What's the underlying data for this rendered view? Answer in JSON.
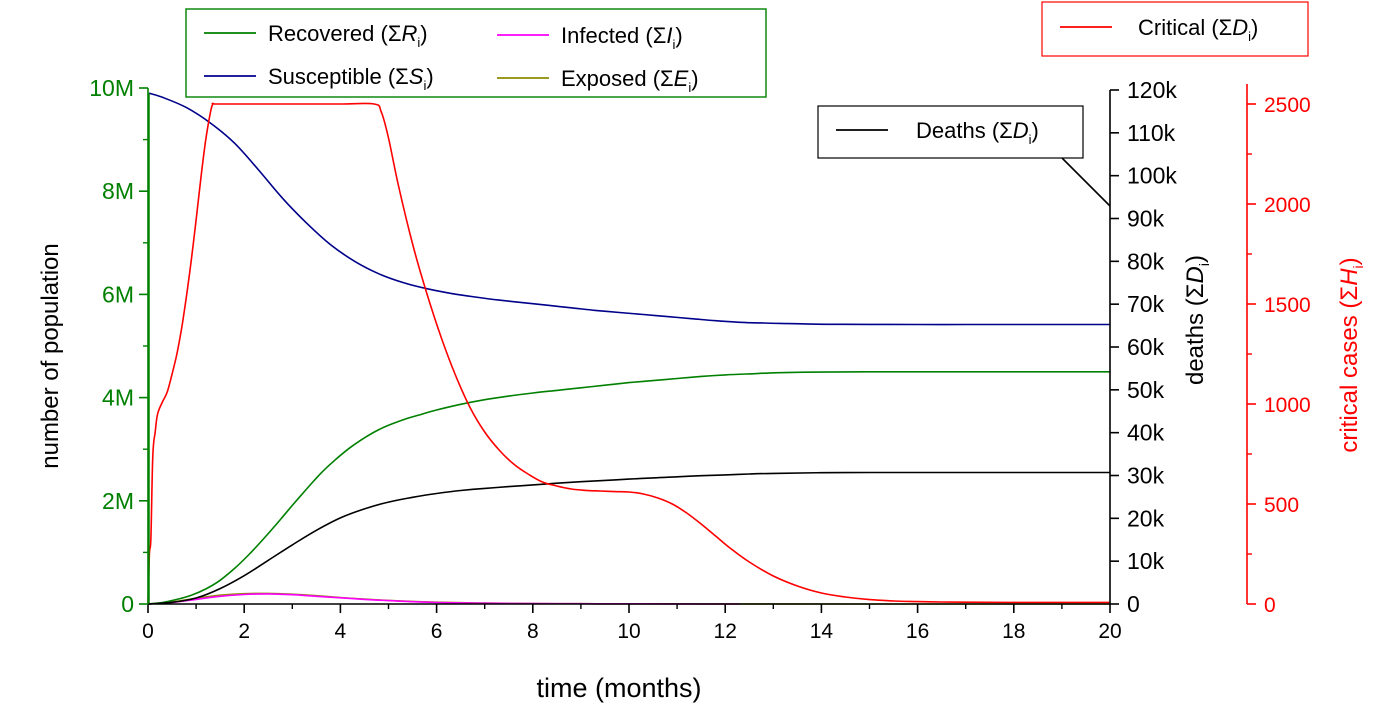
{
  "chart_data": {
    "type": "line",
    "xlabel": "time (months)",
    "xlim": [
      0,
      20
    ],
    "x_ticks": [
      "0",
      "2",
      "4",
      "6",
      "8",
      "10",
      "12",
      "14",
      "16",
      "18",
      "20"
    ],
    "x_minor": true,
    "grid": false,
    "axes": {
      "left": {
        "label": "number of population",
        "color": "#008000",
        "ylim": [
          0,
          10000000
        ],
        "tick_labels": [
          "0",
          "2M",
          "4M",
          "6M",
          "8M",
          "10M"
        ]
      },
      "deaths": {
        "label_main": "deaths",
        "label_sym": "(ΣD",
        "label_sub": "i",
        "label_close": ")",
        "color": "#000000",
        "ylim": [
          0,
          120000
        ],
        "tick_labels": [
          "0",
          "10k",
          "20k",
          "30k",
          "40k",
          "50k",
          "60k",
          "70k",
          "80k",
          "90k",
          "100k",
          "110k",
          "120k"
        ]
      },
      "critical": {
        "label_main": "critical cases",
        "label_sym": "(ΣH",
        "label_sub": "i",
        "label_close": ")",
        "color": "#ff0000",
        "ylim": [
          0,
          2600
        ],
        "tick_labels": [
          "0",
          "500",
          "1000",
          "1500",
          "2000",
          "2500"
        ]
      }
    },
    "series": [
      {
        "name": "Susceptible",
        "sym": "(ΣS",
        "sub": "i",
        "close": ")",
        "color": "#00008b",
        "axis": "left",
        "x": [
          0.02,
          0.3,
          0.8,
          1.3,
          1.8,
          2.3,
          2.8,
          3.3,
          3.8,
          4.3,
          4.8,
          5.3,
          5.8,
          6.3,
          6.8,
          7.3,
          7.8,
          8.3,
          8.8,
          9.3,
          9.8,
          10.3,
          10.8,
          11.3,
          11.8,
          12.3,
          12.8,
          13.3,
          13.8,
          14.3,
          15,
          16,
          17,
          18,
          19,
          20
        ],
        "y": [
          9900000,
          9820000,
          9620000,
          9320000,
          8930000,
          8410000,
          7860000,
          7380000,
          6960000,
          6640000,
          6400000,
          6230000,
          6110000,
          6020000,
          5950000,
          5890000,
          5840000,
          5790000,
          5740000,
          5690000,
          5650000,
          5610000,
          5570000,
          5530000,
          5490000,
          5460000,
          5445000,
          5435000,
          5425000,
          5420000,
          5418000,
          5416000,
          5416000,
          5416000,
          5416000,
          5416000
        ]
      },
      {
        "name": "Recovered",
        "sym": "(ΣR",
        "sub": "i",
        "close": ")",
        "color": "#008000",
        "axis": "left",
        "x": [
          0,
          0.3,
          0.6,
          0.9,
          1.2,
          1.5,
          1.8,
          2.1,
          2.4,
          2.7,
          3.0,
          3.3,
          3.6,
          3.9,
          4.2,
          4.5,
          4.8,
          5.1,
          5.4,
          5.7,
          6.0,
          6.5,
          7,
          7.5,
          8,
          8.5,
          9,
          9.5,
          10,
          10.5,
          11,
          11.5,
          12,
          12.5,
          13,
          13.5,
          14,
          15,
          16,
          17,
          18,
          19,
          20
        ],
        "y": [
          0,
          30000,
          90000,
          170000,
          290000,
          460000,
          690000,
          960000,
          1260000,
          1580000,
          1910000,
          2230000,
          2540000,
          2800000,
          3030000,
          3220000,
          3380000,
          3500000,
          3600000,
          3680000,
          3760000,
          3870000,
          3960000,
          4030000,
          4090000,
          4140000,
          4190000,
          4240000,
          4290000,
          4330000,
          4370000,
          4410000,
          4440000,
          4460000,
          4480000,
          4490000,
          4495000,
          4500000,
          4500000,
          4500000,
          4500000,
          4500000,
          4500000
        ]
      },
      {
        "name": "Deaths",
        "sym": "(ΣD",
        "sub": "i",
        "close": ")",
        "color": "#000000",
        "axis": "deaths",
        "x": [
          0,
          0.5,
          1.0,
          1.5,
          2.0,
          2.5,
          3.0,
          3.5,
          4.0,
          4.5,
          5.0,
          5.5,
          6.0,
          6.5,
          7,
          7.5,
          8,
          8.5,
          9,
          9.5,
          10,
          10.5,
          11,
          11.5,
          12,
          12.5,
          13,
          14,
          15,
          16,
          17,
          18,
          19,
          20
        ],
        "y": [
          0,
          400,
          1400,
          3600,
          6600,
          10200,
          13800,
          17200,
          20100,
          22200,
          23800,
          24900,
          25800,
          26500,
          27000,
          27400,
          27800,
          28200,
          28550,
          28850,
          29150,
          29450,
          29700,
          29950,
          30150,
          30350,
          30500,
          30650,
          30700,
          30700,
          30700,
          30700,
          30700,
          30700
        ]
      },
      {
        "name": "Critical",
        "sym": "(ΣD",
        "sub": "i",
        "close": ")",
        "color": "#ff0000",
        "axis": "critical",
        "x": [
          0,
          0.03,
          0.06,
          0.1,
          0.15,
          0.2,
          0.3,
          0.4,
          0.5,
          0.6,
          0.7,
          0.8,
          0.9,
          1.0,
          1.1,
          1.2,
          1.3,
          1.35,
          1.4,
          2,
          3,
          4,
          4.7,
          4.85,
          5.0,
          5.2,
          5.5,
          5.8,
          6.1,
          6.4,
          6.7,
          7.0,
          7.3,
          7.6,
          7.9,
          8.2,
          8.5,
          8.8,
          9.1,
          9.4,
          9.7,
          10.0,
          10.3,
          10.6,
          10.9,
          11.2,
          11.5,
          11.8,
          12.1,
          12.5,
          13,
          13.5,
          14,
          14.5,
          15,
          15.5,
          16,
          16.5,
          17,
          18,
          19,
          20
        ],
        "y": [
          0,
          250,
          330,
          740,
          860,
          950,
          1010,
          1060,
          1150,
          1250,
          1380,
          1540,
          1720,
          1920,
          2130,
          2320,
          2460,
          2500,
          2500,
          2500,
          2500,
          2500,
          2500,
          2460,
          2330,
          2100,
          1800,
          1550,
          1330,
          1140,
          980,
          860,
          770,
          700,
          650,
          610,
          590,
          575,
          568,
          565,
          562,
          560,
          550,
          530,
          500,
          455,
          400,
          340,
          280,
          210,
          140,
          90,
          55,
          35,
          22,
          15,
          12,
          10,
          9,
          8,
          8,
          8
        ]
      },
      {
        "name": "Infected",
        "sym": "(ΣI",
        "sub": "i",
        "close": ")",
        "color": "#ff00ff",
        "axis": "left",
        "x": [
          0,
          0.5,
          1.0,
          1.5,
          2.0,
          2.5,
          3.0,
          3.5,
          4.0,
          4.5,
          5.0,
          5.5,
          6.0,
          7.0,
          8.0,
          9.0,
          10.0,
          12.3
        ],
        "y": [
          0,
          30000,
          90000,
          150000,
          185000,
          195000,
          180000,
          150000,
          120000,
          90000,
          65000,
          45000,
          30000,
          15000,
          8000,
          5000,
          3000,
          0
        ]
      },
      {
        "name": "Exposed",
        "sym": "(ΣE",
        "sub": "i",
        "close": ")",
        "color": "#8b8b00",
        "axis": "left",
        "x": [
          0,
          0.5,
          1.0,
          1.5,
          2.0,
          2.5,
          3.0,
          3.5,
          4.0,
          4.5,
          5.0,
          5.5,
          6.0,
          7.0,
          8.0,
          9.0,
          10.0,
          12.0,
          15.0,
          16.0,
          20.0
        ],
        "y": [
          0,
          40000,
          110000,
          170000,
          200000,
          205000,
          190000,
          160000,
          125000,
          95000,
          70000,
          50000,
          35000,
          18000,
          9000,
          5000,
          3000,
          1000,
          0,
          0,
          0
        ]
      }
    ],
    "legend_main": {
      "placement": "top-left",
      "items": [
        "Recovered",
        "Infected",
        "Susceptible",
        "Exposed"
      ]
    },
    "legend_deaths": {
      "placement": "top-right",
      "item": "Deaths"
    },
    "legend_critical": {
      "placement": "top-right",
      "item": "Critical"
    }
  }
}
